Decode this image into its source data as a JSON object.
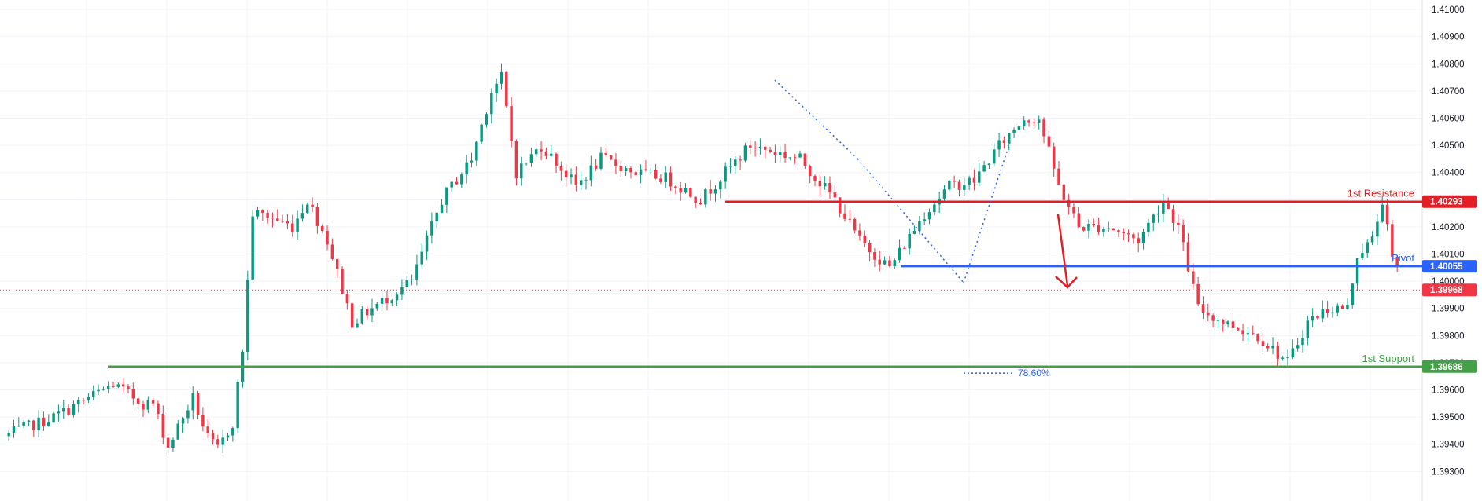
{
  "chart_data": {
    "type": "candlestick",
    "instrument": "",
    "y_axis": {
      "ylim": [
        1.3922,
        1.41035
      ],
      "ticks": [
        "1.41000",
        "1.40900",
        "1.40800",
        "1.40700",
        "1.40600",
        "1.40500",
        "1.40400",
        "1.40300",
        "1.40200",
        "1.40100",
        "1.40000",
        "1.39900",
        "1.39800",
        "1.39700",
        "1.39600",
        "1.39500",
        "1.39400",
        "1.39300"
      ]
    },
    "grid": "on",
    "candle_count": 280,
    "price_path": [
      [
        0,
        1.3943
      ],
      [
        10,
        1.395
      ],
      [
        22,
        1.3962
      ],
      [
        28,
        1.3955
      ],
      [
        30,
        1.3955
      ],
      [
        33,
        1.3939
      ],
      [
        36,
        1.395
      ],
      [
        38,
        1.3957
      ],
      [
        41,
        1.3942
      ],
      [
        43,
        1.3938
      ],
      [
        46,
        1.3948
      ],
      [
        48,
        1.3975
      ],
      [
        50,
        1.4025
      ],
      [
        53,
        1.4024
      ],
      [
        58,
        1.402
      ],
      [
        61,
        1.403
      ],
      [
        65,
        1.4015
      ],
      [
        70,
        1.3985
      ],
      [
        74,
        1.399
      ],
      [
        78,
        1.3995
      ],
      [
        82,
        1.4
      ],
      [
        88,
        1.403
      ],
      [
        94,
        1.4045
      ],
      [
        98,
        1.407
      ],
      [
        100,
        1.4075
      ],
      [
        103,
        1.404
      ],
      [
        108,
        1.405
      ],
      [
        115,
        1.4035
      ],
      [
        120,
        1.4045
      ],
      [
        127,
        1.404
      ],
      [
        133,
        1.4038
      ],
      [
        140,
        1.403
      ],
      [
        145,
        1.404
      ],
      [
        150,
        1.405
      ],
      [
        160,
        1.4045
      ],
      [
        167,
        1.403
      ],
      [
        172,
        1.4015
      ],
      [
        178,
        1.4005
      ],
      [
        185,
        1.4025
      ],
      [
        190,
        1.4035
      ],
      [
        195,
        1.4037
      ],
      [
        200,
        1.405
      ],
      [
        205,
        1.406
      ],
      [
        208,
        1.406
      ],
      [
        212,
        1.4035
      ],
      [
        216,
        1.402
      ],
      [
        222,
        1.402
      ],
      [
        228,
        1.4015
      ],
      [
        233,
        1.403
      ],
      [
        236,
        1.402
      ],
      [
        240,
        1.399
      ],
      [
        245,
        1.3985
      ],
      [
        252,
        1.398
      ],
      [
        258,
        1.397
      ],
      [
        262,
        1.3985
      ],
      [
        266,
        1.399
      ],
      [
        270,
        1.399
      ],
      [
        272,
        1.401
      ],
      [
        275,
        1.4015
      ],
      [
        277,
        1.403
      ],
      [
        279,
        1.4008
      ],
      [
        282,
        1.3996
      ]
    ],
    "levels": [
      {
        "name": "1st Resistance",
        "value": 1.40293,
        "label": "1.40293",
        "color": "#e31e24"
      },
      {
        "name": "Pivot",
        "value": 1.40055,
        "label": "1.40055",
        "color": "#2962ff"
      },
      {
        "name": "1st Support",
        "value": 1.39686,
        "label": "1.39686",
        "color": "#43a047"
      }
    ],
    "last_price": {
      "value": 1.39968,
      "label": "1.39968",
      "color": "#f23645"
    },
    "fib": {
      "label": "78.60%",
      "value": 1.39662
    },
    "forecast_arrow": {
      "direction": "down",
      "color": "#e31e24"
    },
    "colors": {
      "up": "#089981",
      "down": "#f23645"
    }
  }
}
